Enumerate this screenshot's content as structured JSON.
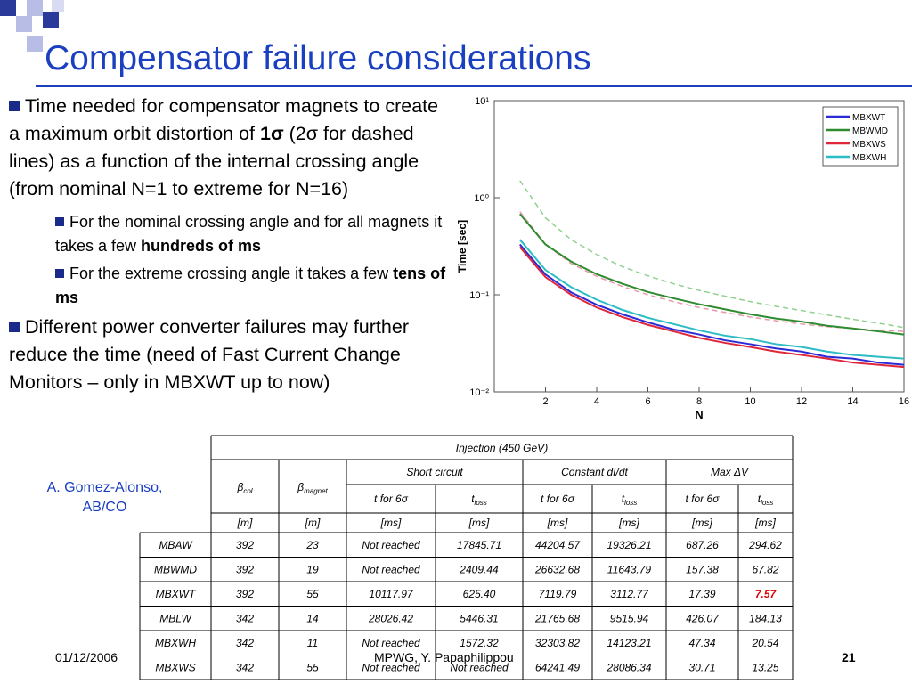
{
  "title": "Compensator failure considerations",
  "bullets": [
    {
      "level": 1,
      "segments": [
        {
          "text": "Time needed for compensator magnets to create a maximum orbit distortion of ",
          "bold": false
        },
        {
          "text": "1σ",
          "bold": true
        },
        {
          "text": " (2σ for dashed lines) as a function of the internal crossing angle (from nominal N=1 to extreme for N=16)",
          "bold": false
        }
      ]
    },
    {
      "level": 2,
      "segments": [
        {
          "text": "For the nominal crossing angle and for all magnets it takes a few ",
          "bold": false
        },
        {
          "text": "hundreds of ms",
          "bold": true
        }
      ]
    },
    {
      "level": 2,
      "segments": [
        {
          "text": "For the extreme crossing angle it takes a few ",
          "bold": false
        },
        {
          "text": "tens of ms",
          "bold": true
        }
      ]
    },
    {
      "level": 1,
      "segments": [
        {
          "text": "Different power converter failures may further reduce the time (need of Fast Current Change Monitors – only in MBXWT up to now)",
          "bold": false
        }
      ]
    }
  ],
  "author": [
    "A. Gomez-Alonso,",
    "AB/CO"
  ],
  "chart_data": {
    "type": "line",
    "xlabel": "N",
    "ylabel": "Time [sec]",
    "x": [
      1,
      2,
      3,
      4,
      5,
      6,
      7,
      8,
      9,
      10,
      11,
      12,
      13,
      14,
      15,
      16
    ],
    "xlim": [
      0,
      16
    ],
    "xticks": [
      2,
      4,
      6,
      8,
      10,
      12,
      14,
      16
    ],
    "ylim": [
      0.01,
      10
    ],
    "log_y": true,
    "yticks": [
      {
        "value": 0.01,
        "label": "10⁻²"
      },
      {
        "value": 0.1,
        "label": "10⁻¹"
      },
      {
        "value": 1,
        "label": "10⁰"
      },
      {
        "value": 10,
        "label": "10¹"
      }
    ],
    "legend": "upper right",
    "series": [
      {
        "name": "MBXWT",
        "color": "#2b2bd6",
        "values": [
          0.33,
          0.162,
          0.106,
          0.079,
          0.063,
          0.052,
          0.044,
          0.039,
          0.034,
          0.031,
          0.028,
          0.026,
          0.023,
          0.022,
          0.02,
          0.019
        ]
      },
      {
        "name": "MBWMD",
        "color": "#2e8b2e",
        "values": [
          0.68,
          0.33,
          0.22,
          0.163,
          0.13,
          0.107,
          0.092,
          0.08,
          0.071,
          0.063,
          0.057,
          0.053,
          0.048,
          0.045,
          0.042,
          0.039
        ]
      },
      {
        "name": "MBXWS",
        "color": "#e0263a",
        "values": [
          0.31,
          0.152,
          0.1,
          0.074,
          0.059,
          0.049,
          0.042,
          0.036,
          0.032,
          0.029,
          0.026,
          0.024,
          0.022,
          0.02,
          0.019,
          0.018
        ]
      },
      {
        "name": "MBXWH",
        "color": "#2cbcc4",
        "values": [
          0.37,
          0.18,
          0.12,
          0.089,
          0.07,
          0.058,
          0.05,
          0.043,
          0.038,
          0.035,
          0.031,
          0.029,
          0.026,
          0.024,
          0.023,
          0.022
        ]
      }
    ],
    "dashed_series": [
      {
        "color": "#8fd08f",
        "values": [
          1.5,
          0.62,
          0.37,
          0.26,
          0.195,
          0.157,
          0.13,
          0.111,
          0.097,
          0.085,
          0.076,
          0.069,
          0.062,
          0.056,
          0.051,
          0.046
        ]
      },
      {
        "color": "#e89aa8",
        "values": [
          0.72,
          0.33,
          0.21,
          0.155,
          0.122,
          0.1,
          0.085,
          0.074,
          0.066,
          0.059,
          0.054,
          0.05,
          0.047,
          0.045,
          0.043,
          0.042
        ]
      }
    ]
  },
  "table": {
    "title": "Injection (450 GeV)",
    "groups": [
      "Short circuit",
      "Constant dI/dt",
      "Max  ΔV"
    ],
    "columns": [
      {
        "symbol": "β",
        "sub": "col",
        "unit": "[m]"
      },
      {
        "symbol": "β",
        "sub": "magnet",
        "unit": "[m]"
      },
      {
        "symbol": "t for 6σ",
        "unit": "[ms]"
      },
      {
        "symbol": "t",
        "sub": "loss",
        "unit": "[ms]"
      },
      {
        "symbol": "t for 6σ",
        "unit": "[ms]"
      },
      {
        "symbol": "t",
        "sub": "loss",
        "unit": "[ms]"
      },
      {
        "symbol": "t for 6σ",
        "unit": "[ms]"
      },
      {
        "symbol": "t",
        "sub": "loss",
        "unit": "[ms]"
      }
    ],
    "rows": [
      [
        "MBAW",
        "392",
        "23",
        "Not reached",
        "17845.71",
        "44204.57",
        "19326.21",
        "687.26",
        "294.62"
      ],
      [
        "MBWMD",
        "392",
        "19",
        "Not reached",
        "2409.44",
        "26632.68",
        "11643.79",
        "157.38",
        "67.82"
      ],
      [
        "MBXWT",
        "392",
        "55",
        "10117.97",
        "625.40",
        "7119.79",
        "3112.77",
        "17.39",
        "7.57"
      ],
      [
        "MBLW",
        "342",
        "14",
        "28026.42",
        "5446.31",
        "21765.68",
        "9515.94",
        "426.07",
        "184.13"
      ],
      [
        "MBXWH",
        "342",
        "11",
        "Not reached",
        "1572.32",
        "32303.82",
        "14123.21",
        "47.34",
        "20.54"
      ],
      [
        "MBXWS",
        "342",
        "55",
        "Not reached",
        "Not reached",
        "64241.49",
        "28086.34",
        "30.71",
        "13.25"
      ]
    ],
    "highlight": {
      "row": 2,
      "col": 8
    }
  },
  "footer": {
    "date": "01/12/2006",
    "presenter": "MPWG, Y. Papaphilippou",
    "page": "21"
  }
}
